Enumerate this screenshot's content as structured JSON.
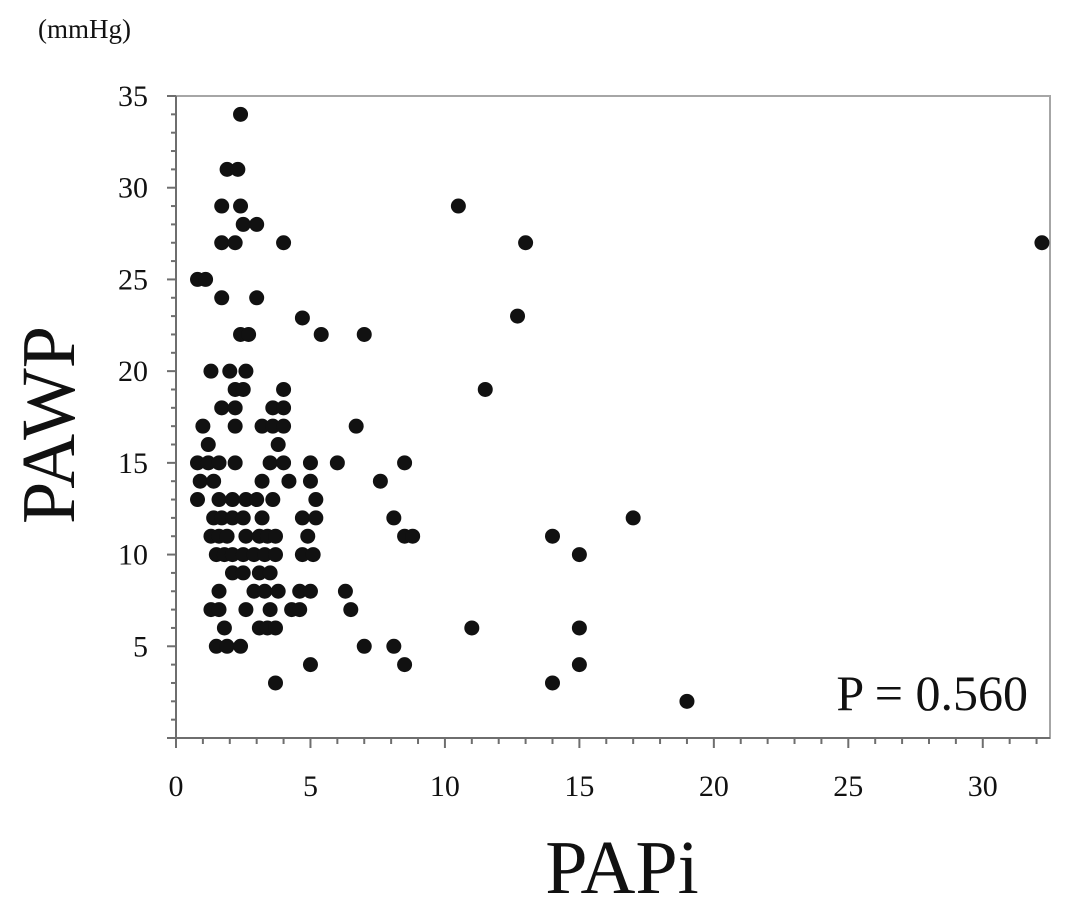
{
  "chart_data": {
    "type": "scatter",
    "xlabel": "PAPi",
    "ylabel": "PAWP",
    "y_unit": "(mmHg)",
    "annotation": "P = 0.560",
    "xlim": [
      0,
      32.5
    ],
    "ylim": [
      0,
      35
    ],
    "x_ticks": [
      0,
      5,
      10,
      15,
      20,
      25,
      30
    ],
    "y_ticks": [
      5,
      10,
      15,
      20,
      25,
      30,
      35
    ],
    "grid": false,
    "legend": "none",
    "marker_color": "#111111",
    "points": [
      [
        2.4,
        34
      ],
      [
        1.9,
        31
      ],
      [
        2.3,
        31
      ],
      [
        1.7,
        29
      ],
      [
        2.4,
        29
      ],
      [
        10.5,
        29
      ],
      [
        2.5,
        28
      ],
      [
        3.0,
        28
      ],
      [
        1.7,
        27
      ],
      [
        2.2,
        27
      ],
      [
        4.0,
        27
      ],
      [
        13.0,
        27
      ],
      [
        32.2,
        27
      ],
      [
        0.8,
        25
      ],
      [
        1.1,
        25
      ],
      [
        1.7,
        24
      ],
      [
        3.0,
        24
      ],
      [
        2.4,
        22
      ],
      [
        2.7,
        22
      ],
      [
        4.7,
        22.9
      ],
      [
        5.4,
        22
      ],
      [
        7.0,
        22
      ],
      [
        12.7,
        23
      ],
      [
        1.3,
        20
      ],
      [
        2.0,
        20
      ],
      [
        2.6,
        20
      ],
      [
        11.5,
        19
      ],
      [
        2.2,
        19
      ],
      [
        2.5,
        19
      ],
      [
        4.0,
        19
      ],
      [
        1.7,
        18
      ],
      [
        2.2,
        18
      ],
      [
        3.6,
        18
      ],
      [
        4.0,
        18
      ],
      [
        1.0,
        17
      ],
      [
        2.2,
        17
      ],
      [
        3.2,
        17
      ],
      [
        3.6,
        17
      ],
      [
        4.0,
        17
      ],
      [
        6.7,
        17
      ],
      [
        1.2,
        16
      ],
      [
        3.8,
        16
      ],
      [
        0.8,
        15
      ],
      [
        1.2,
        15
      ],
      [
        1.6,
        15
      ],
      [
        2.2,
        15
      ],
      [
        3.5,
        15
      ],
      [
        4.0,
        15
      ],
      [
        5.0,
        15
      ],
      [
        6.0,
        15
      ],
      [
        8.5,
        15
      ],
      [
        0.9,
        14
      ],
      [
        1.4,
        14
      ],
      [
        3.2,
        14
      ],
      [
        4.2,
        14
      ],
      [
        5.0,
        14
      ],
      [
        7.6,
        14
      ],
      [
        0.8,
        13
      ],
      [
        1.6,
        13
      ],
      [
        2.1,
        13
      ],
      [
        2.6,
        13
      ],
      [
        3.0,
        13
      ],
      [
        3.6,
        13
      ],
      [
        5.2,
        13
      ],
      [
        1.4,
        12
      ],
      [
        1.7,
        12
      ],
      [
        2.1,
        12
      ],
      [
        2.5,
        12
      ],
      [
        3.2,
        12
      ],
      [
        4.7,
        12
      ],
      [
        5.2,
        12
      ],
      [
        8.1,
        12
      ],
      [
        17.0,
        12
      ],
      [
        1.3,
        11
      ],
      [
        1.6,
        11
      ],
      [
        1.9,
        11
      ],
      [
        2.6,
        11
      ],
      [
        3.1,
        11
      ],
      [
        3.4,
        11
      ],
      [
        3.7,
        11
      ],
      [
        4.9,
        11
      ],
      [
        8.5,
        11
      ],
      [
        8.8,
        11
      ],
      [
        14.0,
        11
      ],
      [
        1.5,
        10
      ],
      [
        1.8,
        10
      ],
      [
        2.1,
        10
      ],
      [
        2.5,
        10
      ],
      [
        2.9,
        10
      ],
      [
        3.3,
        10
      ],
      [
        3.7,
        10
      ],
      [
        4.7,
        10
      ],
      [
        5.1,
        10
      ],
      [
        15.0,
        10
      ],
      [
        2.1,
        9
      ],
      [
        2.5,
        9
      ],
      [
        3.1,
        9
      ],
      [
        3.5,
        9
      ],
      [
        1.6,
        8
      ],
      [
        2.9,
        8
      ],
      [
        3.3,
        8
      ],
      [
        3.8,
        8
      ],
      [
        4.6,
        8
      ],
      [
        5.0,
        8
      ],
      [
        6.3,
        8
      ],
      [
        1.3,
        7
      ],
      [
        1.6,
        7
      ],
      [
        2.6,
        7
      ],
      [
        3.5,
        7
      ],
      [
        4.3,
        7
      ],
      [
        4.6,
        7
      ],
      [
        6.5,
        7
      ],
      [
        1.8,
        6
      ],
      [
        3.1,
        6
      ],
      [
        3.4,
        6
      ],
      [
        3.7,
        6
      ],
      [
        11.0,
        6
      ],
      [
        15.0,
        6
      ],
      [
        1.5,
        5
      ],
      [
        1.9,
        5
      ],
      [
        2.4,
        5
      ],
      [
        7.0,
        5
      ],
      [
        8.1,
        5
      ],
      [
        5.0,
        4
      ],
      [
        8.5,
        4
      ],
      [
        15.0,
        4
      ],
      [
        3.7,
        3
      ],
      [
        14.0,
        3
      ],
      [
        19.0,
        2
      ]
    ]
  }
}
